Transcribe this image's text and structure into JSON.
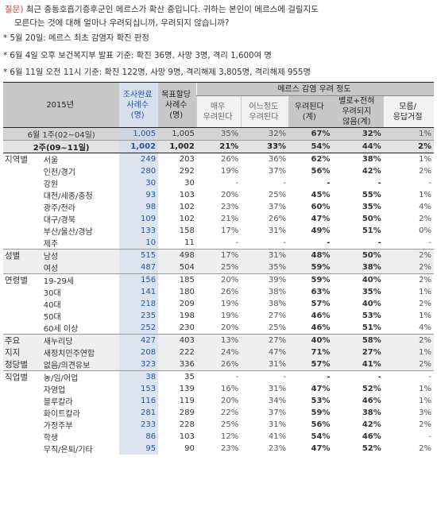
{
  "question": {
    "tag": "질문)",
    "text1": " 최근 중동호흡기증후군인 메르스가 확산 중입니다. 귀하는 본인이 메르스에 걸릴지도",
    "text2": "모른다는 것에 대해 얼마나 우려되십니까, 우려되지 않습니까?"
  },
  "notes": [
    "* 5월 20일: 메르스 최초 감염자 확진 판정",
    "* 6월 4일 오후 보건복지부 발표 기준: 확진 36명, 사망 3명, 격리 1,600여 명",
    "* 6월 11일 오전 11시 기준: 확진 122명, 사망 9명, 격리해제 3,805명, 격리해제 955명"
  ],
  "header": {
    "year": "2015년",
    "col_surveyed": [
      "조사완료",
      "사례수",
      "(명)"
    ],
    "col_target": [
      "목표할당",
      "사례수",
      "(명)"
    ],
    "group": "메르스 감염 우려 정도",
    "c1": [
      "매우",
      "우려된다"
    ],
    "c2": [
      "어느정도",
      "우려된다"
    ],
    "c3": [
      "우려된다",
      "(계)"
    ],
    "c4": [
      "별로+전혀",
      "우려되지",
      "않음(계)"
    ],
    "c5": [
      "모름/",
      "응답거절"
    ]
  },
  "rows": [
    {
      "cat": "",
      "sub": "6월 1주(02~04일)",
      "n1": "1,005",
      "n2": "1,005",
      "v": [
        "35%",
        "32%",
        "67%",
        "32%",
        "1%"
      ],
      "cls": "rw1"
    },
    {
      "cat": "",
      "sub": "2주(09~11일)",
      "n1": "1,002",
      "n2": "1,002",
      "v": [
        "21%",
        "33%",
        "54%",
        "44%",
        "2%"
      ],
      "cls": "rw2"
    },
    {
      "cat": "지역별",
      "sub": "서울",
      "n1": "249",
      "n2": "203",
      "v": [
        "26%",
        "36%",
        "62%",
        "38%",
        "1%"
      ],
      "cls": ""
    },
    {
      "cat": "",
      "sub": "인천/경기",
      "n1": "280",
      "n2": "292",
      "v": [
        "19%",
        "37%",
        "56%",
        "42%",
        "2%"
      ],
      "cls": ""
    },
    {
      "cat": "",
      "sub": "강원",
      "n1": "30",
      "n2": "30",
      "v": [
        "-",
        "-",
        "-",
        "-",
        "-"
      ],
      "cls": ""
    },
    {
      "cat": "",
      "sub": "대전/세종/충청",
      "n1": "93",
      "n2": "103",
      "v": [
        "20%",
        "25%",
        "45%",
        "55%",
        "1%"
      ],
      "cls": ""
    },
    {
      "cat": "",
      "sub": "광주/전라",
      "n1": "98",
      "n2": "102",
      "v": [
        "23%",
        "37%",
        "60%",
        "35%",
        "4%"
      ],
      "cls": ""
    },
    {
      "cat": "",
      "sub": "대구/경북",
      "n1": "109",
      "n2": "102",
      "v": [
        "21%",
        "26%",
        "47%",
        "50%",
        "2%"
      ],
      "cls": ""
    },
    {
      "cat": "",
      "sub": "부산/울산/경남",
      "n1": "133",
      "n2": "158",
      "v": [
        "17%",
        "31%",
        "49%",
        "51%",
        "0%"
      ],
      "cls": ""
    },
    {
      "cat": "",
      "sub": "제주",
      "n1": "10",
      "n2": "11",
      "v": [
        "-",
        "-",
        "-",
        "-",
        "-"
      ],
      "cls": ""
    },
    {
      "cat": "성별",
      "sub": "남성",
      "n1": "515",
      "n2": "498",
      "v": [
        "17%",
        "31%",
        "48%",
        "50%",
        "2%"
      ],
      "cls": "shade gtop"
    },
    {
      "cat": "",
      "sub": "여성",
      "n1": "487",
      "n2": "504",
      "v": [
        "25%",
        "35%",
        "59%",
        "38%",
        "2%"
      ],
      "cls": "shade"
    },
    {
      "cat": "연령별",
      "sub": "19-29세",
      "n1": "156",
      "n2": "185",
      "v": [
        "20%",
        "39%",
        "59%",
        "40%",
        "2%"
      ],
      "cls": "gtop"
    },
    {
      "cat": "",
      "sub": "30대",
      "n1": "141",
      "n2": "180",
      "v": [
        "26%",
        "38%",
        "63%",
        "35%",
        "1%"
      ],
      "cls": ""
    },
    {
      "cat": "",
      "sub": "40대",
      "n1": "218",
      "n2": "209",
      "v": [
        "19%",
        "38%",
        "57%",
        "40%",
        "2%"
      ],
      "cls": ""
    },
    {
      "cat": "",
      "sub": "50대",
      "n1": "235",
      "n2": "198",
      "v": [
        "19%",
        "27%",
        "46%",
        "53%",
        "1%"
      ],
      "cls": ""
    },
    {
      "cat": "",
      "sub": "60세 이상",
      "n1": "252",
      "n2": "230",
      "v": [
        "20%",
        "25%",
        "46%",
        "51%",
        "4%"
      ],
      "cls": ""
    },
    {
      "cat": "주요",
      "sub": "새누리당",
      "n1": "427",
      "n2": "403",
      "v": [
        "13%",
        "27%",
        "40%",
        "58%",
        "2%"
      ],
      "cls": "shade gtop"
    },
    {
      "cat": "지지",
      "sub": "새정치민주연합",
      "n1": "208",
      "n2": "222",
      "v": [
        "24%",
        "47%",
        "71%",
        "27%",
        "1%"
      ],
      "cls": "shade"
    },
    {
      "cat": "정당별",
      "sub": "없음/의견유보",
      "n1": "323",
      "n2": "336",
      "v": [
        "26%",
        "31%",
        "57%",
        "41%",
        "2%"
      ],
      "cls": "shade"
    },
    {
      "cat": "직업별",
      "sub": "농/임/어업",
      "n1": "38",
      "n2": "35",
      "v": [
        "-",
        "-",
        "-",
        "-",
        "-"
      ],
      "cls": "gtop"
    },
    {
      "cat": "",
      "sub": "자영업",
      "n1": "153",
      "n2": "139",
      "v": [
        "16%",
        "31%",
        "47%",
        "52%",
        "1%"
      ],
      "cls": ""
    },
    {
      "cat": "",
      "sub": "블루칼라",
      "n1": "116",
      "n2": "119",
      "v": [
        "20%",
        "34%",
        "53%",
        "46%",
        "1%"
      ],
      "cls": ""
    },
    {
      "cat": "",
      "sub": "화이트칼라",
      "n1": "281",
      "n2": "289",
      "v": [
        "22%",
        "37%",
        "59%",
        "38%",
        "3%"
      ],
      "cls": ""
    },
    {
      "cat": "",
      "sub": "가정주부",
      "n1": "233",
      "n2": "228",
      "v": [
        "25%",
        "31%",
        "56%",
        "42%",
        "2%"
      ],
      "cls": ""
    },
    {
      "cat": "",
      "sub": "학생",
      "n1": "86",
      "n2": "103",
      "v": [
        "12%",
        "41%",
        "54%",
        "46%",
        "-"
      ],
      "cls": ""
    },
    {
      "cat": "",
      "sub": "무직/은퇴/기타",
      "n1": "95",
      "n2": "90",
      "v": [
        "23%",
        "23%",
        "47%",
        "52%",
        "2%"
      ],
      "cls": ""
    }
  ]
}
